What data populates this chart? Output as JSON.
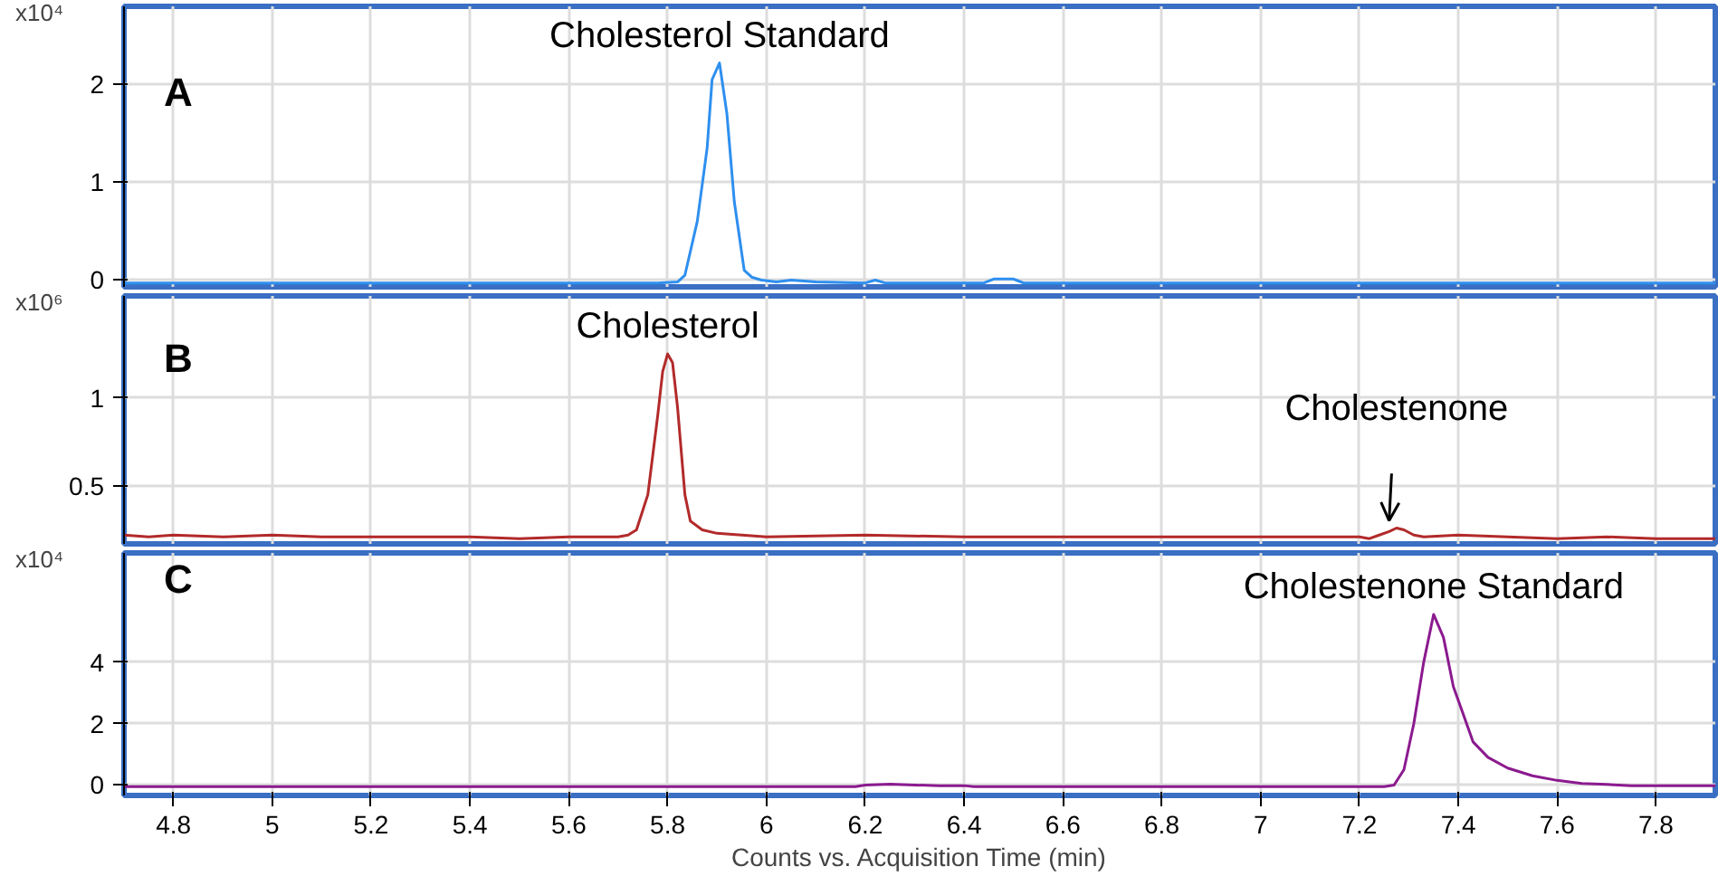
{
  "chart_data": [
    {
      "type": "line",
      "ylabel": "x10⁴",
      "annotations": [
        "A",
        {
          "text": "Cholesterol Standard",
          "x": 5.905,
          "y": 2.22
        }
      ],
      "xlim": [
        4.7,
        7.92
      ],
      "ylim": [
        -0.07,
        2.8
      ],
      "xticks": [
        4.8,
        5,
        5.2,
        5.4,
        5.6,
        5.8,
        6,
        6.2,
        6.4,
        6.6,
        6.8,
        7,
        7.2,
        7.4,
        7.6,
        7.8
      ],
      "yticks": [
        0,
        1,
        2
      ],
      "tick_labels": "y",
      "grid": true,
      "series": [
        {
          "color": "#2e8fef",
          "x": [
            4.7,
            5.78,
            5.82,
            5.835,
            5.86,
            5.88,
            5.89,
            5.905,
            5.92,
            5.935,
            5.955,
            5.97,
            5.99,
            6.02,
            6.05,
            6.1,
            6.2,
            6.22,
            6.24,
            6.44,
            6.46,
            6.5,
            6.51,
            6.52,
            7.92
          ],
          "values": [
            -0.03,
            -0.03,
            -0.02,
            0.05,
            0.6,
            1.35,
            2.05,
            2.22,
            1.7,
            0.8,
            0.1,
            0.03,
            0.0,
            -0.02,
            0.0,
            -0.02,
            -0.03,
            0.0,
            -0.03,
            -0.03,
            0.01,
            0.01,
            -0.01,
            -0.03,
            -0.03
          ]
        }
      ]
    },
    {
      "type": "line",
      "ylabel": "x10⁶",
      "annotations": [
        "B",
        {
          "text": "Cholesterol",
          "x": 5.8,
          "y": 1.25
        },
        {
          "text": "Cholestenone",
          "x": 7.275,
          "y": 0.26
        }
      ],
      "xlim": [
        4.7,
        7.92
      ],
      "ylim": [
        0.17,
        1.58
      ],
      "xticks": [
        4.8,
        5,
        5.2,
        5.4,
        5.6,
        5.8,
        6,
        6.2,
        6.4,
        6.6,
        6.8,
        7,
        7.2,
        7.4,
        7.6,
        7.8
      ],
      "yticks": [
        0.5,
        1
      ],
      "tick_labels": "y",
      "grid": true,
      "series": [
        {
          "color": "#b22a2a",
          "x": [
            4.7,
            4.75,
            4.8,
            4.9,
            5.0,
            5.1,
            5.2,
            5.4,
            5.5,
            5.6,
            5.7,
            5.72,
            5.737,
            5.76,
            5.78,
            5.79,
            5.8,
            5.81,
            5.82,
            5.835,
            5.846,
            5.87,
            5.9,
            5.95,
            6.0,
            6.2,
            6.4,
            6.6,
            6.8,
            7.0,
            7.2,
            7.22,
            7.24,
            7.26,
            7.275,
            7.29,
            7.31,
            7.33,
            7.4,
            7.5,
            7.6,
            7.7,
            7.8,
            7.85,
            7.92
          ],
          "values": [
            0.22,
            0.21,
            0.22,
            0.21,
            0.22,
            0.21,
            0.21,
            0.21,
            0.2,
            0.21,
            0.21,
            0.22,
            0.25,
            0.45,
            0.9,
            1.15,
            1.25,
            1.2,
            0.95,
            0.45,
            0.3,
            0.25,
            0.23,
            0.22,
            0.21,
            0.22,
            0.21,
            0.21,
            0.21,
            0.21,
            0.21,
            0.2,
            0.22,
            0.24,
            0.26,
            0.25,
            0.22,
            0.21,
            0.22,
            0.21,
            0.2,
            0.21,
            0.2,
            0.2,
            0.2
          ]
        }
      ]
    },
    {
      "type": "line",
      "ylabel": "x10⁴",
      "xlabel": "Counts vs. Acquisition Time (min)",
      "annotations": [
        "C",
        {
          "text": "Cholestenone Standard",
          "x": 7.35,
          "y": 5.55
        }
      ],
      "xlim": [
        4.7,
        7.92
      ],
      "ylim": [
        -0.34,
        7.55
      ],
      "xticks": [
        4.8,
        5,
        5.2,
        5.4,
        5.6,
        5.8,
        6,
        6.2,
        6.4,
        6.6,
        6.8,
        7,
        7.2,
        7.4,
        7.6,
        7.8
      ],
      "yticks": [
        0,
        2,
        4
      ],
      "grid": true,
      "series": [
        {
          "color": "#8b1a8f",
          "x": [
            4.7,
            6.18,
            6.2,
            6.25,
            6.3,
            6.35,
            6.4,
            6.42,
            7.25,
            7.27,
            7.29,
            7.31,
            7.33,
            7.35,
            7.37,
            7.39,
            7.41,
            7.43,
            7.46,
            7.5,
            7.55,
            7.6,
            7.65,
            7.7,
            7.75,
            7.92
          ],
          "values": [
            -0.05,
            -0.05,
            0.0,
            0.03,
            0.0,
            -0.02,
            -0.02,
            -0.05,
            -0.05,
            0.0,
            0.5,
            2.0,
            4.0,
            5.55,
            4.8,
            3.2,
            2.3,
            1.4,
            0.9,
            0.55,
            0.3,
            0.15,
            0.05,
            0.02,
            -0.02,
            -0.02
          ]
        }
      ]
    }
  ]
}
